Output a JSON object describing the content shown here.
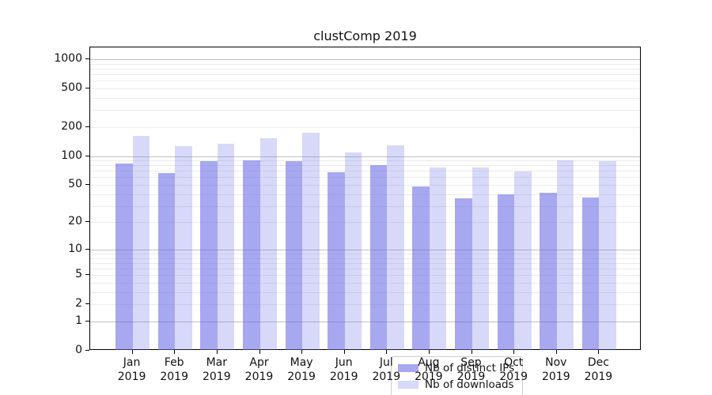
{
  "title": "clustComp 2019",
  "chart_data": {
    "type": "bar",
    "title": "clustComp 2019",
    "categories": [
      "Jan 2019",
      "Feb 2019",
      "Mar 2019",
      "Apr 2019",
      "May 2019",
      "Jun 2019",
      "Jul 2019",
      "Aug 2019",
      "Sep 2019",
      "Oct 2019",
      "Nov 2019",
      "Dec 2019"
    ],
    "series": [
      {
        "name": "Nb of distinct IPs",
        "color": "rgba(99,99,228,0.56)",
        "values": [
          84,
          67,
          88,
          91,
          89,
          68,
          81,
          48,
          36,
          40,
          41,
          37
        ]
      },
      {
        "name": "Nb of downloads",
        "color": "rgba(99,99,228,0.25)",
        "values": [
          163,
          127,
          133,
          152,
          173,
          109,
          128,
          76,
          76,
          69,
          91,
          88
        ]
      }
    ],
    "xlabel": "",
    "ylabel": "",
    "y_scale": "log1p",
    "y_ticks": [
      1000,
      500,
      200,
      100,
      50,
      20,
      10,
      5,
      2,
      1,
      0
    ],
    "ylim": [
      0,
      1320
    ],
    "grid": "horizontal major (decades) and minor log lines",
    "legend_position": "inside bottom-center"
  },
  "colors": {
    "bar_distinct_ips": "rgba(99,99,228,0.56)",
    "bar_downloads": "rgba(99,99,228,0.25)",
    "grid_major": "#c0c0c0",
    "grid_minor": "#ebebeb",
    "axis": "#000000",
    "background": "#ffffff"
  }
}
